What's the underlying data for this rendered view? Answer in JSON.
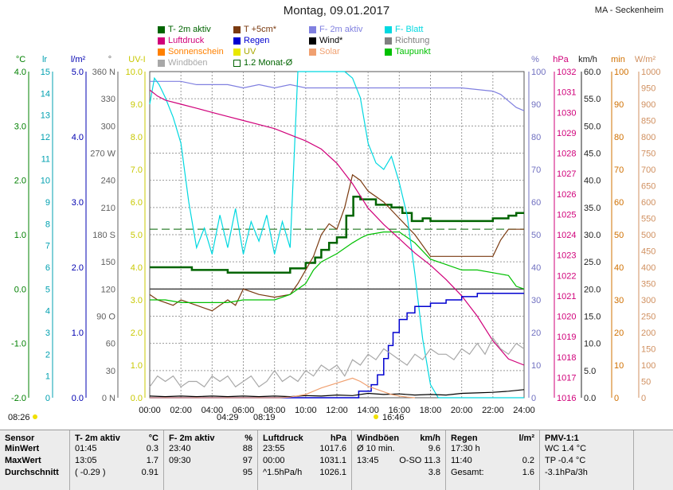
{
  "header": {
    "title": "Montag, 09.01.2017",
    "station": "MA - Seckenheim"
  },
  "legend": [
    {
      "label": "T- 2m aktiv",
      "color": "#006400",
      "style": "fill"
    },
    {
      "label": "T +5cm*",
      "color": "#7a3a10",
      "style": "fill"
    },
    {
      "label": "F- 2m aktiv",
      "color": "#8080e0",
      "style": "fill"
    },
    {
      "label": "F- Blatt",
      "color": "#00d8e0",
      "style": "fill"
    },
    {
      "label": "Luftdruck",
      "color": "#d0007a",
      "style": "fill"
    },
    {
      "label": "Regen",
      "color": "#0000d0",
      "style": "fill"
    },
    {
      "label": "Wind*",
      "color": "#000000",
      "style": "fill"
    },
    {
      "label": "Richtung",
      "color": "#808080",
      "style": "fill"
    },
    {
      "label": "Sonnenschein",
      "color": "#ff8000",
      "style": "fill"
    },
    {
      "label": "UV",
      "color": "#e8e800",
      "style": "fill"
    },
    {
      "label": "Solar",
      "color": "#f0a070",
      "style": "fill"
    },
    {
      "label": "Taupunkt",
      "color": "#00c000",
      "style": "fill"
    },
    {
      "label": "Windböen",
      "color": "#a8a8a8",
      "style": "fill"
    },
    {
      "label": "1.2 Monat-Ø",
      "color": "#006400",
      "style": "outline"
    }
  ],
  "axes": {
    "left": [
      {
        "unit": "°C",
        "color": "#008000",
        "ticks": [
          "4.0",
          "3.0",
          "2.0",
          "1.0",
          "0.0",
          "-1.0",
          "-2.0"
        ]
      },
      {
        "unit": "lr",
        "color": "#00a0b0",
        "ticks": [
          "15",
          "14",
          "13",
          "12",
          "11",
          "10",
          "9",
          "8",
          "7",
          "6",
          "5",
          "4",
          "3",
          "2",
          "1",
          "0"
        ]
      },
      {
        "unit": "l/m²",
        "color": "#0000b0",
        "ticks": [
          "5.0",
          "4.0",
          "3.0",
          "2.0",
          "1.0",
          "0.0"
        ]
      },
      {
        "unit": "°",
        "color": "#606060",
        "ticks": [
          "360 N",
          "330",
          "300",
          "270 W",
          "240",
          "210",
          "180 S",
          "150",
          "120",
          "90 O",
          "60",
          "30",
          "0 N"
        ]
      },
      {
        "unit": "UV-I",
        "color": "#c8c800",
        "ticks": [
          "10.0",
          "9.0",
          "8.0",
          "7.0",
          "6.0",
          "5.0",
          "4.0",
          "3.0",
          "2.0",
          "1.0",
          "0.0"
        ]
      }
    ],
    "right": [
      {
        "unit": "%",
        "color": "#7070c0",
        "ticks": [
          "100",
          "90",
          "80",
          "70",
          "60",
          "50",
          "40",
          "30",
          "20",
          "10",
          "0"
        ]
      },
      {
        "unit": "hPa",
        "color": "#d0007a",
        "ticks": [
          "1032",
          "1031",
          "1030",
          "1029",
          "1028",
          "1027",
          "1026",
          "1025",
          "1024",
          "1023",
          "1022",
          "1021",
          "1020",
          "1019",
          "1018",
          "1017",
          "1016"
        ]
      },
      {
        "unit": "km/h",
        "color": "#202020",
        "ticks": [
          "60.0",
          "55.0",
          "50.0",
          "45.0",
          "40.0",
          "35.0",
          "30.0",
          "25.0",
          "20.0",
          "15.0",
          "10.0",
          "5.0",
          "0.0"
        ]
      },
      {
        "unit": "min",
        "color": "#d07000",
        "ticks": [
          "100",
          "90",
          "80",
          "70",
          "60",
          "50",
          "40",
          "30",
          "20",
          "10",
          "0"
        ]
      },
      {
        "unit": "W/m²",
        "color": "#d09060",
        "ticks": [
          "1000",
          "950",
          "900",
          "850",
          "800",
          "750",
          "700",
          "650",
          "600",
          "550",
          "500",
          "450",
          "400",
          "350",
          "300",
          "250",
          "200",
          "150",
          "100",
          "50",
          "0"
        ]
      }
    ]
  },
  "chart_data": {
    "type": "line",
    "x_ticks": [
      "00:00",
      "02:00",
      "04:00",
      "06:00",
      "08:00",
      "10:00",
      "12:00",
      "14:00",
      "16:00",
      "18:00",
      "20:00",
      "22:00",
      "24:00"
    ],
    "xlim": [
      0,
      24
    ],
    "ylim_celsius": [
      -2,
      4
    ],
    "series": [
      {
        "name": "T- 2m aktiv",
        "color": "#006400",
        "unit": "°C",
        "x": [
          0,
          2.6,
          2.7,
          5,
          6,
          8.6,
          9,
          10,
          10.6,
          11,
          11.5,
          12,
          12.6,
          13.05,
          13.5,
          14.5,
          15.5,
          16.2,
          16.8,
          17.5,
          18,
          20,
          21,
          22,
          23,
          23.5,
          24
        ],
        "y": [
          0.4,
          0.4,
          0.35,
          0.3,
          0.3,
          0.3,
          0.38,
          0.48,
          0.58,
          0.72,
          0.85,
          0.95,
          1.35,
          1.7,
          1.65,
          1.55,
          1.5,
          1.4,
          1.25,
          1.3,
          1.25,
          1.25,
          1.25,
          1.3,
          1.35,
          1.4,
          1.4
        ]
      },
      {
        "name": "T +5cm*",
        "color": "#7a3a10",
        "unit": "°C",
        "x": [
          0,
          0.5,
          1.5,
          2,
          3,
          4,
          5,
          5.5,
          6,
          7,
          8,
          9,
          9.5,
          10,
          10.5,
          11,
          11.5,
          12,
          12.5,
          13,
          13.5,
          14,
          15,
          16,
          17,
          18,
          19,
          20,
          21,
          22,
          22.5,
          23,
          24
        ],
        "y": [
          -0.1,
          -0.2,
          -0.3,
          -0.2,
          -0.3,
          -0.4,
          -0.2,
          -0.3,
          0,
          -0.1,
          -0.15,
          -0.1,
          0.1,
          0.35,
          0.6,
          1.0,
          1.2,
          1.1,
          1.5,
          2.1,
          2.0,
          1.8,
          1.6,
          1.3,
          1.0,
          0.6,
          0.6,
          0.6,
          0.6,
          0.6,
          0.9,
          1.1,
          1.1
        ]
      },
      {
        "name": "Taupunkt",
        "color": "#00c000",
        "unit": "°C",
        "x": [
          0,
          1,
          2,
          3,
          4,
          5,
          6,
          8,
          9,
          10,
          10.5,
          11,
          12,
          13,
          13.6,
          14,
          15,
          16,
          16.5,
          17,
          18,
          19,
          20,
          21,
          22,
          23,
          23.5,
          24
        ],
        "y": [
          -0.2,
          -0.2,
          -0.25,
          -0.25,
          -0.25,
          -0.25,
          -0.2,
          -0.2,
          -0.1,
          0.1,
          0.35,
          0.5,
          0.65,
          0.85,
          0.95,
          1.0,
          1.05,
          1.05,
          0.95,
          0.85,
          0.55,
          0.45,
          0.35,
          0.35,
          0.3,
          0.25,
          0.05,
          0.0
        ]
      },
      {
        "name": "F- 2m aktiv",
        "color": "#8080e0",
        "unit": "%",
        "x": [
          0,
          1,
          2,
          3,
          5,
          6,
          7,
          8,
          9,
          10,
          12,
          13,
          14,
          16,
          18,
          20,
          22,
          22.5,
          23,
          23.5,
          24
        ],
        "y": [
          97,
          97,
          97,
          96,
          96,
          95,
          96,
          95,
          96,
          95,
          95,
          95,
          95,
          95,
          95,
          95,
          94,
          93,
          91,
          89,
          88
        ]
      },
      {
        "name": "F- Blatt",
        "color": "#00d8e0",
        "unit": "%",
        "x": [
          0,
          0.3,
          0.6,
          1,
          1.5,
          2,
          2.5,
          3,
          3.5,
          4,
          4.5,
          5,
          5.5,
          6,
          6.5,
          7,
          7.5,
          8,
          8.5,
          9,
          9.5,
          10,
          10.5,
          11,
          11.5,
          12,
          12.5,
          13,
          13.5,
          14,
          14.5,
          15,
          15.5,
          16,
          16.5,
          17,
          17.5,
          18,
          18.5,
          19,
          19.5,
          20,
          20.5,
          21,
          21.5,
          22,
          22.5,
          23,
          23.5,
          24
        ],
        "y": [
          90,
          98,
          96,
          92,
          86,
          78,
          60,
          46,
          52,
          44,
          56,
          46,
          58,
          44,
          54,
          48,
          56,
          44,
          54,
          46,
          100,
          100,
          100,
          100,
          100,
          100,
          100,
          98,
          92,
          78,
          72,
          70,
          74,
          66,
          56,
          38,
          18,
          4,
          0,
          0,
          0,
          0,
          0,
          0,
          0,
          0,
          0,
          0,
          0,
          0
        ]
      },
      {
        "name": "Luftdruck",
        "color": "#d0007a",
        "unit": "hPa",
        "x": [
          0,
          0.5,
          1,
          2,
          3,
          4,
          5,
          6,
          7,
          8,
          9,
          10,
          11,
          12,
          13,
          14,
          15,
          16,
          17,
          18,
          19,
          20,
          21,
          22,
          23,
          24
        ],
        "y": [
          1031.1,
          1030.8,
          1030.6,
          1030.4,
          1030.2,
          1030.0,
          1029.8,
          1029.6,
          1029.4,
          1029.2,
          1028.9,
          1028.6,
          1028.2,
          1027.5,
          1026.5,
          1025.3,
          1024.5,
          1023.8,
          1023.1,
          1022.5,
          1021.8,
          1021.0,
          1020.0,
          1018.8,
          1017.9,
          1017.6
        ]
      },
      {
        "name": "Regen",
        "color": "#0000d0",
        "unit": "l/m²",
        "x": [
          0,
          13.3,
          13.4,
          13.8,
          14.2,
          14.6,
          15,
          15.3,
          15.6,
          16,
          16.5,
          17,
          18,
          19,
          20,
          21,
          22,
          23,
          23.6,
          24
        ],
        "y": [
          0,
          0,
          0.1,
          0.1,
          0.2,
          0.35,
          0.6,
          0.8,
          1.0,
          1.2,
          1.3,
          1.4,
          1.45,
          1.5,
          1.55,
          1.6,
          1.6,
          1.6,
          1.6,
          1.6
        ]
      },
      {
        "name": "Windböen",
        "color": "#a8a8a8",
        "unit": "km/h",
        "x": [
          0,
          0.5,
          1,
          1.5,
          2,
          2.5,
          3,
          3.5,
          4,
          4.5,
          5,
          5.5,
          6,
          6.5,
          7,
          7.5,
          8,
          8.5,
          9,
          9.5,
          10,
          10.5,
          11,
          11.5,
          12,
          12.5,
          13,
          13.5,
          14,
          14.5,
          15,
          15.5,
          16,
          16.5,
          17,
          17.5,
          18,
          18.5,
          19,
          19.5,
          20,
          20.5,
          21,
          21.5,
          22,
          22.5,
          23,
          23.5,
          24
        ],
        "y": [
          2,
          4,
          3,
          4,
          2,
          3,
          3,
          2,
          4,
          3,
          4,
          2,
          3,
          4,
          2,
          3,
          5,
          3,
          4,
          3,
          5,
          4,
          6,
          5,
          6,
          4,
          7,
          6,
          8,
          7,
          9,
          8,
          7,
          6,
          8,
          7,
          9,
          8,
          8,
          7,
          9,
          8,
          10,
          8,
          11,
          9,
          8,
          10,
          9
        ]
      },
      {
        "name": "Wind*",
        "color": "#000000",
        "unit": "km/h",
        "x": [
          0,
          1,
          2,
          3,
          4,
          5,
          6,
          7,
          8,
          9,
          10,
          11,
          12,
          13,
          14,
          15,
          16,
          17,
          18,
          19,
          20,
          21,
          22,
          23,
          24
        ],
        "y": [
          0.3,
          0.2,
          0.3,
          0.2,
          0.3,
          0.2,
          0.3,
          0.2,
          0.3,
          0.2,
          0.4,
          0.3,
          0.5,
          0.4,
          0.8,
          0.6,
          0.7,
          0.5,
          0.6,
          0.5,
          0.8,
          0.9,
          1.0,
          1.2,
          1.5
        ]
      },
      {
        "name": "Solar",
        "color": "#f0a070",
        "unit": "W/m²",
        "x": [
          0,
          8.3,
          9,
          10,
          11,
          12,
          13,
          13.5,
          14,
          15,
          15.5,
          16,
          16.5,
          17
        ],
        "y": [
          0,
          0,
          2,
          10,
          30,
          45,
          60,
          50,
          35,
          18,
          10,
          5,
          2,
          0
        ]
      }
    ],
    "monthly_avg_celsius": 1.1,
    "sunrise": "08:26",
    "sunset": "16:46",
    "moon_events": [
      "04:29",
      "08:19"
    ]
  },
  "stats": {
    "labels": {
      "sensor": "Sensor",
      "min": "MinWert",
      "max": "MaxWert",
      "avg": "Durchschnitt"
    },
    "t2m": {
      "title": "T- 2m aktiv",
      "unit": "°C",
      "min_time": "01:45",
      "min_val": "0.3",
      "max_time": "13:05",
      "max_val": "1.7",
      "avg_note": "( -0.29 )",
      "avg_val": "0.91"
    },
    "f2m": {
      "title": "F- 2m aktiv",
      "unit": "%",
      "min_time": "23:40",
      "min_val": "88",
      "max_time": "09:30",
      "max_val": "97",
      "avg_val": "95"
    },
    "pressure": {
      "title": "Luftdruck",
      "unit": "hPa",
      "min_time": "23:55",
      "min_val": "1017.6",
      "max_time": "00:00",
      "max_val": "1031.1",
      "avg_note": "^1.5hPa/h",
      "avg_val": "1026.1"
    },
    "gusts": {
      "title": "Windböen",
      "unit": "km/h",
      "min_label": "Ø 10 min.",
      "min_val": "9.6",
      "max_time": "13:45",
      "max_dir": "O-SO",
      "max_val": "11.3",
      "avg_val": "3.8"
    },
    "rain": {
      "title": "Regen",
      "unit": "l/m²",
      "min_time": "17:30 h",
      "max_time": "11:40",
      "max_val": "0.2",
      "avg_label": "Gesamt:",
      "avg_val": "1.6"
    },
    "pmv": {
      "title": "PMV-1:1",
      "l1": "WC 1.4 °C",
      "l2": "TP -0.4 °C",
      "l3": "-3.1hPa/3h"
    }
  }
}
